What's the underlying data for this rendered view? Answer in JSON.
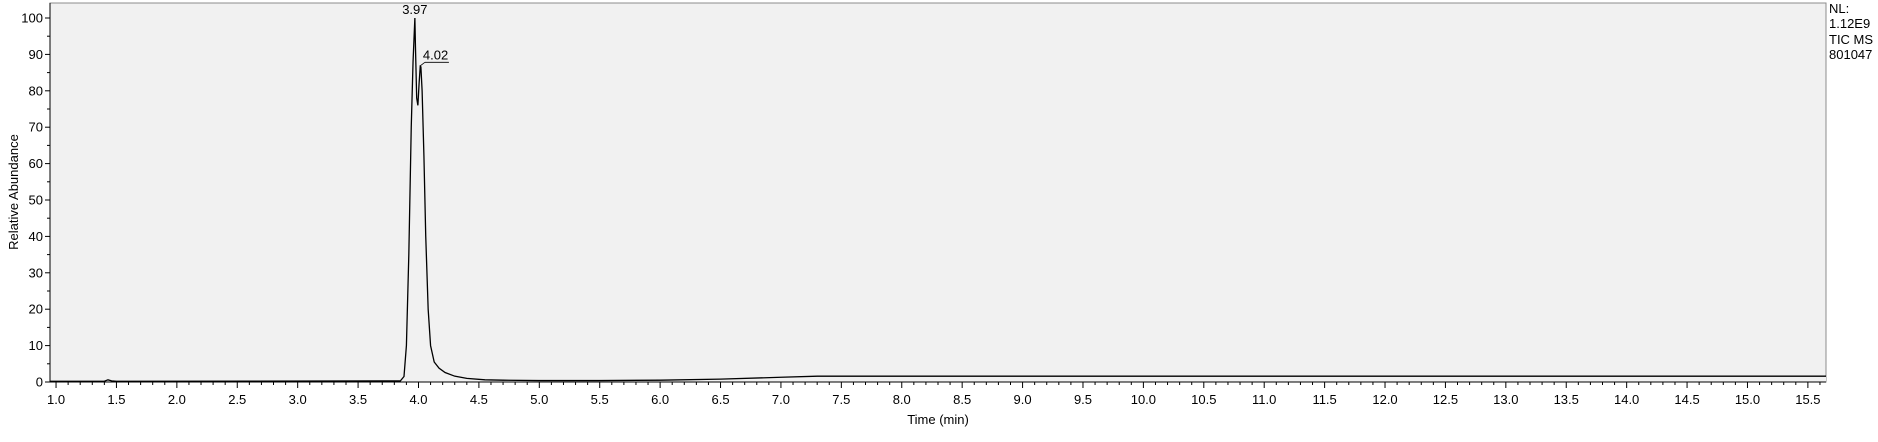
{
  "chart_data": {
    "type": "line",
    "title": "",
    "xlabel": "Time (min)",
    "ylabel": "Relative Abundance",
    "xlim": [
      0.95,
      15.65
    ],
    "ylim": [
      0,
      102
    ],
    "grid": false,
    "legend": "none",
    "x_ticks": [
      "1.0",
      "1.5",
      "2.0",
      "2.5",
      "3.0",
      "3.5",
      "4.0",
      "4.5",
      "5.0",
      "5.5",
      "6.0",
      "6.5",
      "7.0",
      "7.5",
      "8.0",
      "8.5",
      "9.0",
      "9.5",
      "10.0",
      "10.5",
      "11.0",
      "11.5",
      "12.0",
      "12.5",
      "13.0",
      "13.5",
      "14.0",
      "14.5",
      "15.0",
      "15.5"
    ],
    "y_ticks": [
      "0",
      "10",
      "20",
      "30",
      "40",
      "50",
      "60",
      "70",
      "80",
      "90",
      "100"
    ],
    "annotations": [
      {
        "label": "3.97",
        "x": 3.97,
        "y": 100
      },
      {
        "label": "4.02",
        "x": 4.02,
        "y": 87
      }
    ],
    "normalization": [
      "NL:",
      "1.12E9",
      "TIC  MS",
      "801047"
    ],
    "series": [
      {
        "color": "#000000",
        "fill": "#f1f1f1",
        "x": [
          0.95,
          1.4,
          1.43,
          1.46,
          1.5,
          3.85,
          3.88,
          3.9,
          3.92,
          3.94,
          3.955,
          3.965,
          3.97,
          3.975,
          3.985,
          3.995,
          4.005,
          4.015,
          4.02,
          4.03,
          4.045,
          4.06,
          4.08,
          4.1,
          4.13,
          4.17,
          4.22,
          4.3,
          4.4,
          4.55,
          4.7,
          5.0,
          5.5,
          6.0,
          6.5,
          7.0,
          7.3,
          8.0,
          10.0,
          12.0,
          15.65
        ],
        "y": [
          0.2,
          0.2,
          0.6,
          0.3,
          0.2,
          0.3,
          1.5,
          10,
          35,
          70,
          88,
          96,
          100,
          92,
          78,
          76,
          82,
          87,
          86.5,
          80,
          62,
          40,
          20,
          10,
          5.5,
          3.8,
          2.6,
          1.6,
          1.0,
          0.6,
          0.5,
          0.4,
          0.4,
          0.5,
          0.8,
          1.3,
          1.6,
          1.6,
          1.6,
          1.6,
          1.6
        ]
      }
    ]
  }
}
